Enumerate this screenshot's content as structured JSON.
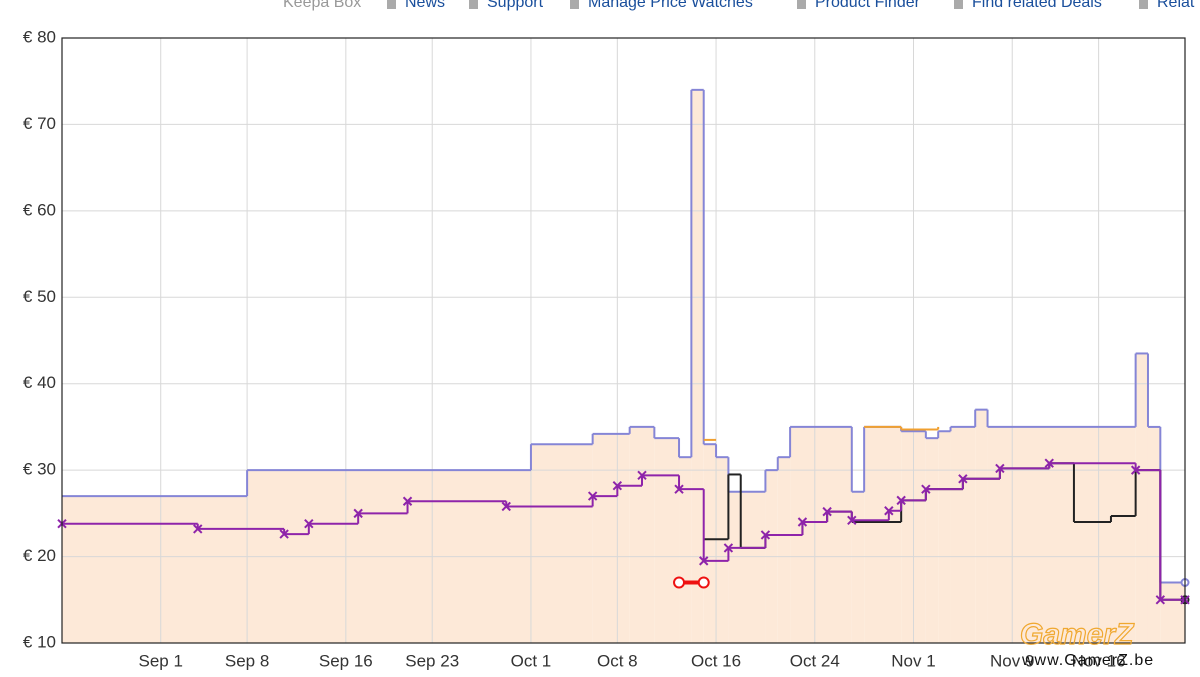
{
  "nav": [
    "Keepa Box",
    "News",
    "Support",
    "Manage Price Watches",
    "Product Finder",
    "Find related Deals",
    "Relat"
  ],
  "watermark": {
    "logo": "GamerZ",
    "url": "www.GamerZ.be"
  },
  "chart_data": {
    "type": "line",
    "step": true,
    "grid": true,
    "xlim": [
      "Aug 24",
      "Nov 23"
    ],
    "xticks": [
      "Sep 1",
      "Sep 8",
      "Sep 16",
      "Sep 23",
      "Oct 1",
      "Oct 8",
      "Oct 16",
      "Oct 24",
      "Nov 1",
      "Nov 9",
      "Nov 16"
    ],
    "ylim": [
      10,
      80
    ],
    "yticks": [
      {
        "value": 10,
        "label": "€ 10"
      },
      {
        "value": 20,
        "label": "€ 20"
      },
      {
        "value": 30,
        "label": "€ 30"
      },
      {
        "value": 40,
        "label": "€ 40"
      },
      {
        "value": 50,
        "label": "€ 50"
      },
      {
        "value": 60,
        "label": "€ 60"
      },
      {
        "value": 70,
        "label": "€ 70"
      },
      {
        "value": 80,
        "label": "€ 80"
      }
    ],
    "series": [
      {
        "color": "#8585d6",
        "fill": "#fde9d8",
        "marker": "end",
        "x": [
          "Aug 24",
          "Sep 8",
          "Oct 1",
          "Oct 6",
          "Oct 9",
          "Oct 11",
          "Oct 13",
          "Oct 14",
          "Oct 15",
          "Oct 16",
          "Oct 17",
          "Oct 20",
          "Oct 21",
          "Oct 22",
          "Oct 27",
          "Oct 28",
          "Oct 31",
          "Nov 2",
          "Nov 3",
          "Nov 4",
          "Nov 6",
          "Nov 7",
          "Nov 19",
          "Nov 20",
          "Nov 21",
          "Nov 23"
        ],
        "values": [
          27,
          30,
          33,
          34.2,
          35,
          33.7,
          31.5,
          74,
          33,
          31.5,
          27.5,
          30,
          31.5,
          35,
          27.5,
          35,
          34.5,
          33.7,
          34.5,
          35,
          37,
          35,
          43.5,
          35,
          17,
          17
        ]
      },
      {
        "color": "#f0a030",
        "marker": "none",
        "x": [
          "Oct 15",
          "Oct 16",
          "Oct 28",
          "Oct 31",
          "Nov 3"
        ],
        "values": [
          33.5,
          null,
          35,
          34.7,
          35
        ]
      },
      {
        "color": "#222222",
        "marker": "end",
        "x": [
          "Oct 15",
          "Oct 17",
          "Oct 18",
          "Oct 20",
          "Oct 23",
          "Oct 25",
          "Oct 27",
          "Oct 31",
          "Nov 2",
          "Nov 5",
          "Nov 8",
          "Nov 12",
          "Nov 14",
          "Nov 17",
          "Nov 19",
          "Nov 21",
          "Nov 23"
        ],
        "values": [
          22,
          29.5,
          21,
          22.5,
          24,
          25.2,
          24,
          26.5,
          27.8,
          29,
          30.2,
          30.8,
          24,
          24.7,
          30,
          15,
          15
        ]
      },
      {
        "color": "#8e24aa",
        "marker": "x",
        "x": [
          "Aug 24",
          "Sep 4",
          "Sep 11",
          "Sep 13",
          "Sep 17",
          "Sep 21",
          "Sep 29",
          "Oct 6",
          "Oct 8",
          "Oct 10",
          "Oct 13",
          "Oct 15",
          "Oct 17",
          "Oct 20",
          "Oct 23",
          "Oct 25",
          "Oct 27",
          "Oct 30",
          "Oct 31",
          "Nov 2",
          "Nov 5",
          "Nov 8",
          "Nov 12",
          "Nov 19",
          "Nov 21",
          "Nov 23"
        ],
        "values": [
          23.8,
          23.2,
          22.6,
          23.8,
          25,
          26.4,
          25.8,
          27,
          28.2,
          29.4,
          27.8,
          19.5,
          21,
          22.5,
          24,
          25.2,
          24.2,
          25.3,
          26.5,
          27.8,
          29,
          30.2,
          30.8,
          30,
          15,
          15
        ]
      },
      {
        "color": "#ee1111",
        "marker": "circle",
        "x": [
          "Oct 13",
          "Oct 15"
        ],
        "values": [
          17,
          17
        ]
      }
    ]
  }
}
